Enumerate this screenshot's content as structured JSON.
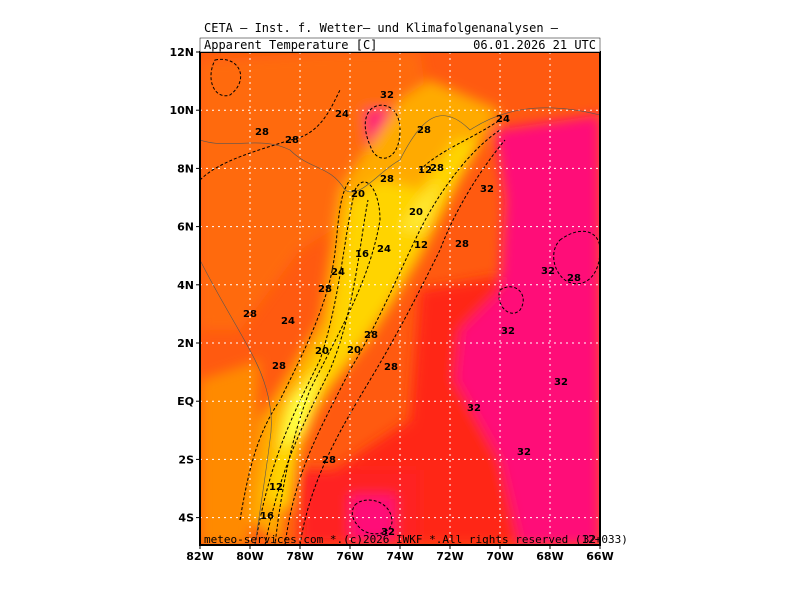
{
  "header": {
    "title": "CETA — Inst. f. Wetter— und Klimafolgenanalysen —",
    "variable": "Apparent Temperature [C]",
    "valid_time": "06.01.2026 21 UTC"
  },
  "map": {
    "lat_labels": [
      "12N",
      "10N",
      "8N",
      "6N",
      "4N",
      "2N",
      "EQ",
      "2S",
      "4S"
    ],
    "lon_labels": [
      "82W",
      "80W",
      "78W",
      "76W",
      "74W",
      "72W",
      "70W",
      "68W",
      "66W"
    ],
    "contour_labels": [
      "24",
      "32",
      "28",
      "28",
      "28",
      "24",
      "28",
      "12",
      "28",
      "32",
      "20",
      "20",
      "12",
      "24",
      "16",
      "28",
      "24",
      "28",
      "32",
      "28",
      "28",
      "24",
      "28",
      "32",
      "20",
      "20",
      "28",
      "28",
      "32",
      "32",
      "32",
      "28",
      "12",
      "16",
      "32"
    ]
  },
  "footer": {
    "credit": "meteo-services.com *.(c)2026 IWKF *.All rights reserved (12+033)",
    "corner_value": "32"
  }
}
